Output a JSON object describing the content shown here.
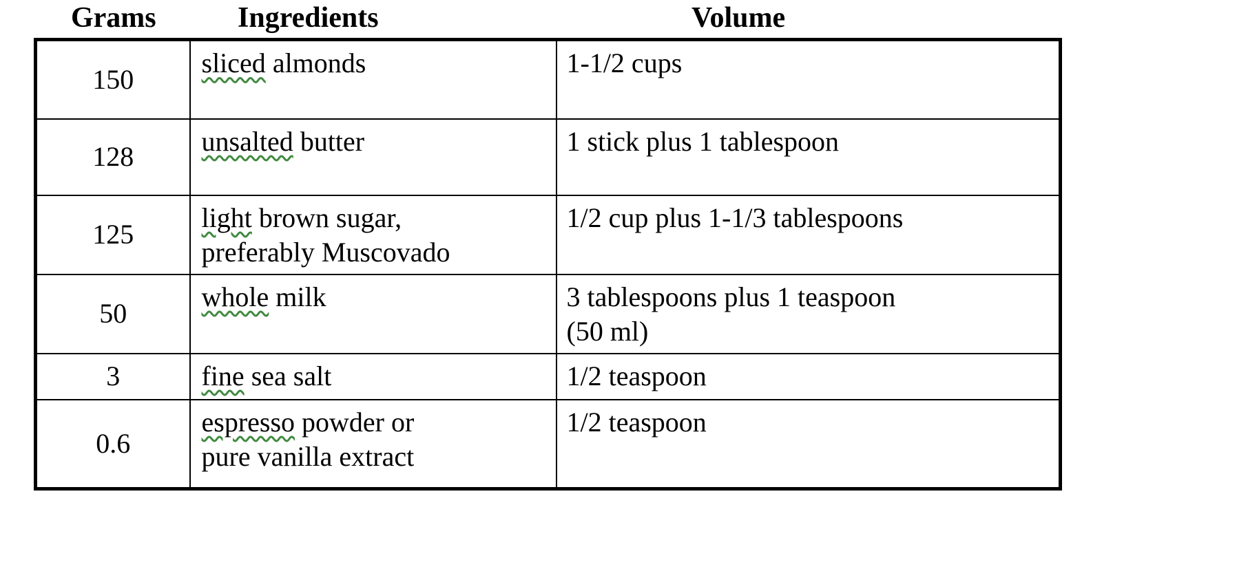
{
  "colors": {
    "text": "#000000",
    "border": "#000000",
    "squiggle": "#3f8a3f"
  },
  "table": {
    "headers": {
      "grams": "Grams",
      "ingredients": "Ingredients",
      "volume": "Volume"
    },
    "rows": [
      {
        "grams": "150",
        "ingredient_flagged": "sliced",
        "ingredient_rest": " almonds",
        "volume": "1-1/2 cups"
      },
      {
        "grams": "128",
        "ingredient_flagged": "unsalted",
        "ingredient_rest": " butter",
        "volume": "1 stick plus 1 tablespoon"
      },
      {
        "grams": "125",
        "ingredient_flagged": "light",
        "ingredient_rest": " brown sugar,\npreferably Muscovado",
        "volume": "1/2 cup plus 1-1/3 tablespoons"
      },
      {
        "grams": "50",
        "ingredient_flagged": "whole",
        "ingredient_rest": " milk",
        "volume": "3 tablespoons plus 1 teaspoon\n(50 ml)"
      },
      {
        "grams": "3",
        "ingredient_flagged": "fine",
        "ingredient_rest": " sea salt",
        "volume": "1/2 teaspoon"
      },
      {
        "grams": "0.6",
        "ingredient_flagged": "espresso",
        "ingredient_rest": " powder or\npure vanilla extract",
        "volume": "1/2 teaspoon"
      }
    ]
  }
}
